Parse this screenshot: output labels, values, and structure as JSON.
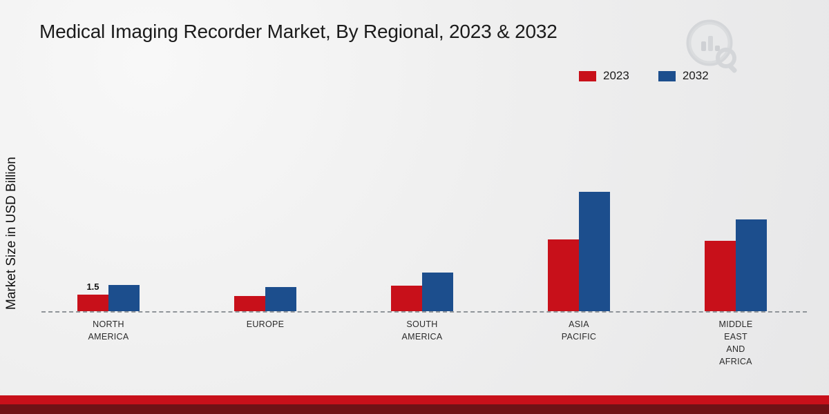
{
  "title": "Medical Imaging Recorder Market, By Regional, 2023 & 2032",
  "ylabel": "Market Size in USD Billion",
  "legend": {
    "items": [
      {
        "label": "2023",
        "color": "#c8101a"
      },
      {
        "label": "2032",
        "color": "#1c4e8d"
      }
    ]
  },
  "chart_data": {
    "type": "bar",
    "categories": [
      [
        "NORTH",
        "AMERICA"
      ],
      [
        "EUROPE"
      ],
      [
        "SOUTH",
        "AMERICA"
      ],
      [
        "ASIA",
        "PACIFIC"
      ],
      [
        "MIDDLE",
        "EAST",
        "AND",
        "AFRICA"
      ]
    ],
    "series": [
      {
        "name": "2023",
        "color": "#c8101a",
        "values": [
          1.5,
          1.35,
          2.3,
          6.5,
          6.4
        ]
      },
      {
        "name": "2032",
        "color": "#1c4e8d",
        "values": [
          2.4,
          2.2,
          3.5,
          10.8,
          8.3
        ]
      }
    ],
    "annotations": [
      {
        "series": "2023",
        "category_index": 0,
        "text": "1.5"
      }
    ],
    "ylabel": "Market Size in USD Billion",
    "ylim": [
      0,
      12
    ],
    "grid": false,
    "legend_position": "top-right",
    "baseline_style": "dashed"
  },
  "colors": {
    "footer_red": "#c8101a",
    "footer_dark": "#6f1216",
    "baseline": "#8f9499"
  }
}
